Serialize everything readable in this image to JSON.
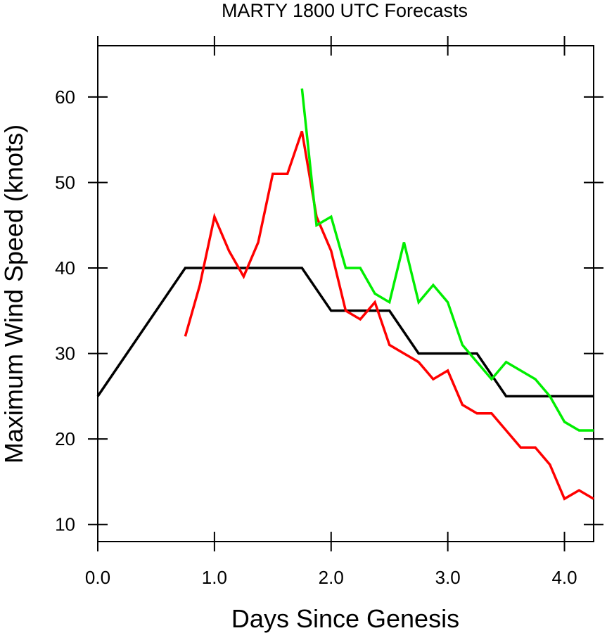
{
  "chart_data": {
    "type": "line",
    "title": "MARTY 1800 UTC Forecasts",
    "xlabel": "Days Since Genesis",
    "ylabel": "Maximum Wind Speed (knots)",
    "xlim": [
      0.0,
      4.25
    ],
    "ylim": [
      8,
      66
    ],
    "x_ticks": [
      0.0,
      1.0,
      2.0,
      3.0,
      4.0
    ],
    "x_tick_labels": [
      "0.0",
      "1.0",
      "2.0",
      "3.0",
      "4.0"
    ],
    "y_ticks": [
      10,
      20,
      30,
      40,
      50,
      60
    ],
    "y_tick_labels": [
      "10",
      "20",
      "30",
      "40",
      "50",
      "60"
    ],
    "grid": false,
    "series": [
      {
        "color": "#000000",
        "x": [
          0.0,
          0.75,
          1.75,
          2.0,
          2.5,
          2.75,
          3.25,
          3.5,
          4.25
        ],
        "y": [
          25,
          40,
          40,
          35,
          35,
          30,
          30,
          25,
          25
        ]
      },
      {
        "color": "#ff0000",
        "x": [
          0.75,
          0.875,
          1.0,
          1.125,
          1.25,
          1.375,
          1.5,
          1.625,
          1.75,
          1.875,
          2.0,
          2.125,
          2.25,
          2.375,
          2.5,
          2.625,
          2.75,
          2.875,
          3.0,
          3.125,
          3.25,
          3.375,
          3.5,
          3.625,
          3.75,
          3.875,
          4.0,
          4.125,
          4.25
        ],
        "y": [
          32,
          38,
          46,
          42,
          39,
          43,
          51,
          51,
          56,
          46,
          42,
          35,
          34,
          36,
          31,
          30,
          29,
          27,
          28,
          24,
          23,
          23,
          21,
          19,
          19,
          17,
          13,
          14,
          13
        ]
      },
      {
        "color": "#00ee00",
        "x": [
          1.75,
          1.875,
          2.0,
          2.125,
          2.25,
          2.375,
          2.5,
          2.625,
          2.75,
          2.875,
          3.0,
          3.125,
          3.25,
          3.375,
          3.5,
          3.625,
          3.75,
          3.875,
          4.0,
          4.125,
          4.25
        ],
        "y": [
          61,
          45,
          46,
          40,
          40,
          37,
          36,
          43,
          36,
          38,
          36,
          31,
          29,
          27,
          29,
          28,
          27,
          25,
          22,
          21,
          21
        ]
      }
    ]
  }
}
